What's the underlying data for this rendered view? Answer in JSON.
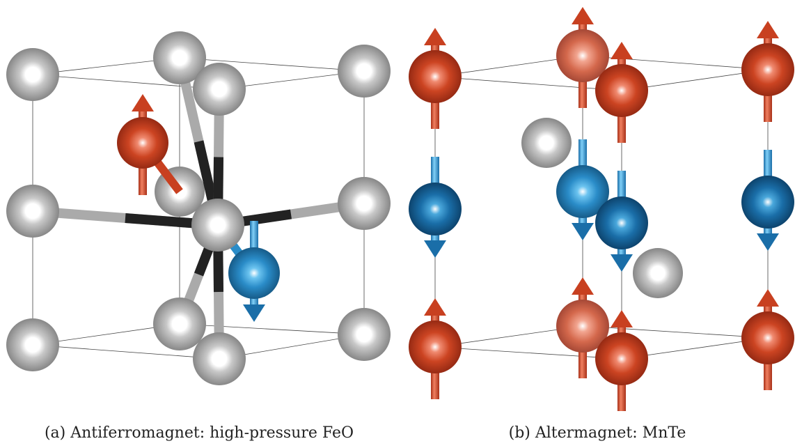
{
  "panels": [
    {
      "caption": "(a) Antiferromagnet: high-pressure FeO"
    },
    {
      "caption": "(b) Altermagnet: MnTe"
    }
  ]
}
